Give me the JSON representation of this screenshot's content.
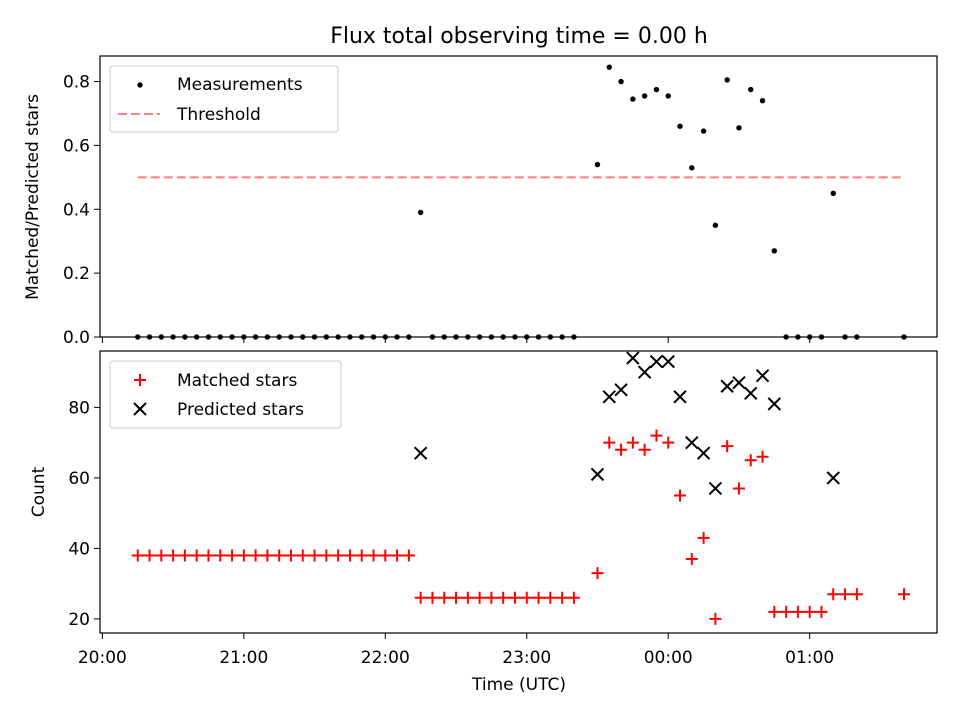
{
  "chart_data": {
    "title": "Flux total observing time = 0.00 h",
    "xlabel": "Time (UTC)",
    "x_ticks": [
      "20:00",
      "21:00",
      "22:00",
      "23:00",
      "00:00",
      "01:00"
    ],
    "x_start_date": "2023-01-01",
    "xlim": [
      "2023-01-01T19:59:00",
      "2023-01-02T01:54:00"
    ],
    "grid": false,
    "panels": [
      {
        "type": "scatter",
        "ylabel": "Matched/Predicted stars",
        "ylim": [
          0,
          0.88
        ],
        "y_ticks": [
          "0.0",
          "0.2",
          "0.4",
          "0.6",
          "0.8"
        ],
        "legend_position": "top-left",
        "series": [
          {
            "name": "Measurements",
            "marker": "dot",
            "color": "#000000",
            "x": [
              "2023-01-01T20:15:00",
              "2023-01-01T20:20:00",
              "2023-01-01T20:25:00",
              "2023-01-01T20:30:00",
              "2023-01-01T20:35:00",
              "2023-01-01T20:40:00",
              "2023-01-01T20:45:00",
              "2023-01-01T20:50:00",
              "2023-01-01T20:55:00",
              "2023-01-01T21:00:00",
              "2023-01-01T21:05:00",
              "2023-01-01T21:10:00",
              "2023-01-01T21:15:00",
              "2023-01-01T21:20:00",
              "2023-01-01T21:25:00",
              "2023-01-01T21:30:00",
              "2023-01-01T21:35:00",
              "2023-01-01T21:40:00",
              "2023-01-01T21:45:00",
              "2023-01-01T21:50:00",
              "2023-01-01T21:55:00",
              "2023-01-01T22:00:00",
              "2023-01-01T22:05:00",
              "2023-01-01T22:10:00",
              "2023-01-01T22:15:00",
              "2023-01-01T22:20:00",
              "2023-01-01T22:25:00",
              "2023-01-01T22:30:00",
              "2023-01-01T22:35:00",
              "2023-01-01T22:40:00",
              "2023-01-01T22:45:00",
              "2023-01-01T22:50:00",
              "2023-01-01T22:55:00",
              "2023-01-01T23:00:00",
              "2023-01-01T23:05:00",
              "2023-01-01T23:10:00",
              "2023-01-01T23:15:00",
              "2023-01-01T23:20:00",
              "2023-01-01T23:30:00",
              "2023-01-01T23:35:00",
              "2023-01-01T23:40:00",
              "2023-01-01T23:45:00",
              "2023-01-01T23:50:00",
              "2023-01-01T23:55:00",
              "2023-01-02T00:00:00",
              "2023-01-02T00:05:00",
              "2023-01-02T00:10:00",
              "2023-01-02T00:15:00",
              "2023-01-02T00:20:00",
              "2023-01-02T00:25:00",
              "2023-01-02T00:30:00",
              "2023-01-02T00:35:00",
              "2023-01-02T00:40:00",
              "2023-01-02T00:45:00",
              "2023-01-02T00:50:00",
              "2023-01-02T00:55:00",
              "2023-01-02T01:00:00",
              "2023-01-02T01:05:00",
              "2023-01-02T01:10:00",
              "2023-01-02T01:15:00",
              "2023-01-02T01:20:00",
              "2023-01-02T01:40:00"
            ],
            "y": [
              0,
              0,
              0,
              0,
              0,
              0,
              0,
              0,
              0,
              0,
              0,
              0,
              0,
              0,
              0,
              0,
              0,
              0,
              0,
              0,
              0,
              0,
              0,
              0,
              0.39,
              0,
              0,
              0,
              0,
              0,
              0,
              0,
              0,
              0,
              0,
              0,
              0,
              0,
              0.54,
              0.845,
              0.8,
              0.745,
              0.755,
              0.775,
              0.755,
              0.66,
              0.53,
              0.645,
              0.35,
              0.805,
              0.655,
              0.775,
              0.74,
              0.27,
              0,
              0,
              0,
              0,
              0.45,
              0,
              0,
              0
            ]
          },
          {
            "name": "Threshold",
            "marker": "dashed-line",
            "color": "#ff7f7f",
            "x": [
              "2023-01-01T20:15:00",
              "2023-01-02T01:40:00"
            ],
            "y": [
              0.5,
              0.5
            ]
          }
        ]
      },
      {
        "type": "scatter",
        "ylabel": "Count",
        "ylim": [
          16,
          96
        ],
        "y_ticks": [
          "20",
          "40",
          "60",
          "80"
        ],
        "legend_position": "top-left",
        "series": [
          {
            "name": "Matched stars",
            "marker": "plus",
            "color": "#ff0000",
            "x": [
              "2023-01-01T20:15:00",
              "2023-01-01T20:20:00",
              "2023-01-01T20:25:00",
              "2023-01-01T20:30:00",
              "2023-01-01T20:35:00",
              "2023-01-01T20:40:00",
              "2023-01-01T20:45:00",
              "2023-01-01T20:50:00",
              "2023-01-01T20:55:00",
              "2023-01-01T21:00:00",
              "2023-01-01T21:05:00",
              "2023-01-01T21:10:00",
              "2023-01-01T21:15:00",
              "2023-01-01T21:20:00",
              "2023-01-01T21:25:00",
              "2023-01-01T21:30:00",
              "2023-01-01T21:35:00",
              "2023-01-01T21:40:00",
              "2023-01-01T21:45:00",
              "2023-01-01T21:50:00",
              "2023-01-01T21:55:00",
              "2023-01-01T22:00:00",
              "2023-01-01T22:05:00",
              "2023-01-01T22:10:00",
              "2023-01-01T22:15:00",
              "2023-01-01T22:20:00",
              "2023-01-01T22:25:00",
              "2023-01-01T22:30:00",
              "2023-01-01T22:35:00",
              "2023-01-01T22:40:00",
              "2023-01-01T22:45:00",
              "2023-01-01T22:50:00",
              "2023-01-01T22:55:00",
              "2023-01-01T23:00:00",
              "2023-01-01T23:05:00",
              "2023-01-01T23:10:00",
              "2023-01-01T23:15:00",
              "2023-01-01T23:20:00",
              "2023-01-01T23:30:00",
              "2023-01-01T23:35:00",
              "2023-01-01T23:40:00",
              "2023-01-01T23:45:00",
              "2023-01-01T23:50:00",
              "2023-01-01T23:55:00",
              "2023-01-02T00:00:00",
              "2023-01-02T00:05:00",
              "2023-01-02T00:10:00",
              "2023-01-02T00:15:00",
              "2023-01-02T00:20:00",
              "2023-01-02T00:25:00",
              "2023-01-02T00:30:00",
              "2023-01-02T00:35:00",
              "2023-01-02T00:40:00",
              "2023-01-02T00:45:00",
              "2023-01-02T00:50:00",
              "2023-01-02T00:55:00",
              "2023-01-02T01:00:00",
              "2023-01-02T01:05:00",
              "2023-01-02T01:10:00",
              "2023-01-02T01:15:00",
              "2023-01-02T01:20:00",
              "2023-01-02T01:40:00"
            ],
            "y": [
              38,
              38,
              38,
              38,
              38,
              38,
              38,
              38,
              38,
              38,
              38,
              38,
              38,
              38,
              38,
              38,
              38,
              38,
              38,
              38,
              38,
              38,
              38,
              38,
              26,
              26,
              26,
              26,
              26,
              26,
              26,
              26,
              26,
              26,
              26,
              26,
              26,
              26,
              33,
              70,
              68,
              70,
              68,
              72,
              70,
              55,
              37,
              43,
              20,
              69,
              57,
              65,
              66,
              22,
              22,
              22,
              22,
              22,
              27,
              27,
              27,
              27
            ]
          },
          {
            "name": "Predicted stars",
            "marker": "x",
            "color": "#000000",
            "x": [
              "2023-01-01T22:15:00",
              "2023-01-01T23:30:00",
              "2023-01-01T23:35:00",
              "2023-01-01T23:40:00",
              "2023-01-01T23:45:00",
              "2023-01-01T23:50:00",
              "2023-01-01T23:55:00",
              "2023-01-02T00:00:00",
              "2023-01-02T00:05:00",
              "2023-01-02T00:10:00",
              "2023-01-02T00:15:00",
              "2023-01-02T00:20:00",
              "2023-01-02T00:25:00",
              "2023-01-02T00:30:00",
              "2023-01-02T00:35:00",
              "2023-01-02T00:40:00",
              "2023-01-02T00:45:00",
              "2023-01-02T01:10:00"
            ],
            "y": [
              67,
              61,
              83,
              85,
              94,
              90,
              93,
              93,
              83,
              70,
              67,
              57,
              86,
              87,
              84,
              89,
              81,
              60
            ]
          }
        ]
      }
    ]
  }
}
